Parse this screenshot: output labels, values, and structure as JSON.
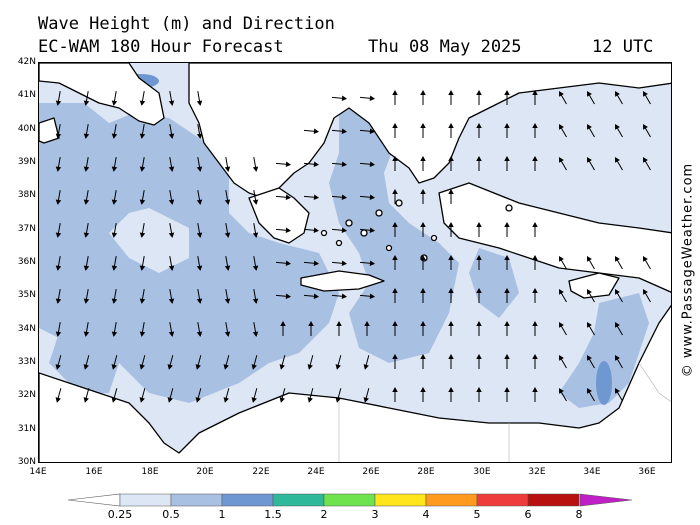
{
  "header": {
    "title": "Wave Height (m) and Direction",
    "model": "EC-WAM 180 Hour Forecast",
    "date": "Thu 08 May 2025",
    "time": "12 UTC"
  },
  "watermark": "© www.PassageWeather.com",
  "axes": {
    "lat_labels": [
      "42N",
      "41N",
      "40N",
      "39N",
      "38N",
      "37N",
      "36N",
      "35N",
      "34N",
      "33N",
      "32N",
      "31N",
      "30N"
    ],
    "lon_labels": [
      "14E",
      "16E",
      "18E",
      "20E",
      "22E",
      "24E",
      "26E",
      "28E",
      "30E",
      "32E",
      "34E",
      "36E"
    ]
  },
  "legend": {
    "labels": [
      "0.25",
      "0.5",
      "1",
      "1.5",
      "2",
      "3",
      "4",
      "5",
      "6",
      "8"
    ],
    "colors": [
      "#ffffff",
      "#dde6f4",
      "#a8c0e2",
      "#6f98d3",
      "#2fb899",
      "#6fe34d",
      "#ffe51c",
      "#ff9a1e",
      "#ee3c3c",
      "#b80f0f",
      "#c01fc7"
    ]
  },
  "colors": {
    "land": "#ffffff",
    "sea_low": "#dde6f4",
    "sea_mid": "#a8c0e2",
    "sea_high": "#6f98d3"
  }
}
